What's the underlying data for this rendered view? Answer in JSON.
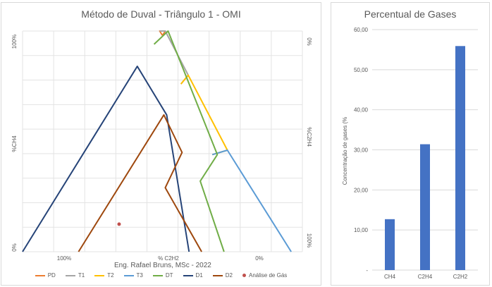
{
  "duval_chart": {
    "title": "Método de Duval - Triângulo 1 - OMI",
    "credit": "Eng. Rafael Bruns, MSc - 2022",
    "left_axis_title": "%CH4",
    "left_axis_ticks": [
      "100%",
      "0%"
    ],
    "right_axis_title": "%C2H4",
    "right_axis_ticks": [
      "0%",
      "100%"
    ],
    "bottom_axis_title": "% C2H2",
    "bottom_axis_ticks": [
      "100%",
      "0%"
    ],
    "legend": [
      {
        "label": "PD",
        "color": "#ed7d31",
        "marker": "line"
      },
      {
        "label": "T1",
        "color": "#a5a5a5",
        "marker": "line"
      },
      {
        "label": "T2",
        "color": "#ffc000",
        "marker": "line"
      },
      {
        "label": "T3",
        "color": "#5b9bd5",
        "marker": "line"
      },
      {
        "label": "DT",
        "color": "#70ad47",
        "marker": "line"
      },
      {
        "label": "D1",
        "color": "#264478",
        "marker": "line"
      },
      {
        "label": "D2",
        "color": "#9e480e",
        "marker": "line"
      },
      {
        "label": "Análise de Gás",
        "color": "#c0504d",
        "marker": "dot"
      }
    ]
  },
  "chart_data": [
    {
      "type": "scatter",
      "title": "Método de Duval - Triângulo 1 - OMI",
      "xlabel": "% C2H2",
      "ylabel": "%CH4",
      "xlim": [
        0,
        100
      ],
      "ylim": [
        0,
        100
      ],
      "grid": true,
      "legend_position": "bottom",
      "series": [
        {
          "name": "PD",
          "points": [
            [
              50,
              98
            ],
            [
              49,
              100
            ],
            [
              51,
              100
            ],
            [
              50,
              98
            ]
          ]
        },
        {
          "name": "T1",
          "points": [
            [
              49,
              100
            ],
            [
              51,
              100
            ],
            [
              59.2,
              80
            ],
            [
              56.6,
              76
            ]
          ]
        },
        {
          "name": "T2",
          "points": [
            [
              56.6,
              76
            ],
            [
              59.2,
              80
            ],
            [
              73.2,
              46
            ],
            [
              67.8,
              44
            ]
          ]
        },
        {
          "name": "T3",
          "points": [
            [
              67.8,
              44
            ],
            [
              73.2,
              46
            ],
            [
              96,
              0
            ],
            [
              96,
              0
            ]
          ]
        },
        {
          "name": "DT",
          "points": [
            [
              47,
              94
            ],
            [
              52,
              100
            ],
            [
              69.6,
              44
            ],
            [
              63.5,
              32
            ],
            [
              72,
              0
            ]
          ]
        },
        {
          "name": "D1",
          "points": [
            [
              0,
              0
            ],
            [
              41,
              84
            ],
            [
              51.5,
              62
            ],
            [
              59.5,
              0
            ]
          ]
        },
        {
          "name": "D2",
          "points": [
            [
              20,
              0
            ],
            [
              50.5,
              62
            ],
            [
              57,
              45
            ],
            [
              51,
              29
            ],
            [
              64,
              0
            ]
          ]
        },
        {
          "name": "Análise de Gás",
          "points": [
            [
              34.5,
              12.5
            ]
          ]
        }
      ]
    },
    {
      "type": "bar",
      "title": "Percentual de Gases",
      "xlabel": "",
      "ylabel": "Concentração de gases (%",
      "categories": [
        "CH4",
        "C2H4",
        "C2H2"
      ],
      "values": [
        12.7,
        31.4,
        55.9
      ],
      "ylim": [
        0,
        60
      ],
      "yticks": [
        "-",
        "10,00",
        "20,00",
        "30,00",
        "40,00",
        "50,00",
        "60,00"
      ],
      "grid": true,
      "color": "#4472c4"
    }
  ]
}
